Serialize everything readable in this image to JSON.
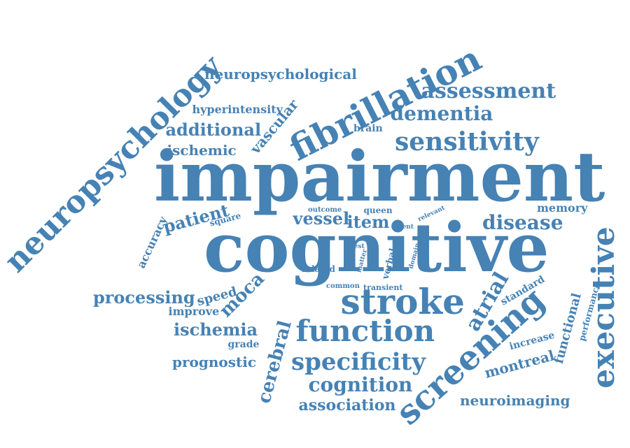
{
  "cloud": {
    "color": "#4682B4",
    "words": [
      "impairment",
      "cognitive",
      "neuropsychology",
      "fibrillation",
      "stroke",
      "function",
      "screening",
      "executive",
      "sensitivity",
      "assessment",
      "dementia",
      "specificity",
      "cognition",
      "association",
      "neuroimaging",
      "neuropsychological",
      "disease",
      "atrial",
      "moca",
      "processing",
      "ischemia",
      "prognostic",
      "cerebral",
      "additional",
      "vascular",
      "ischemic",
      "hyperintensity",
      "vessel",
      "item",
      "patient",
      "montreal",
      "functional",
      "memory",
      "accuracy",
      "square",
      "speed",
      "improve",
      "grade",
      "brain",
      "queen",
      "outcome",
      "event",
      "relevant",
      "test",
      "matter",
      "verbal",
      "domain",
      "related",
      "common",
      "transient",
      "standard",
      "performance",
      "increase"
    ]
  }
}
